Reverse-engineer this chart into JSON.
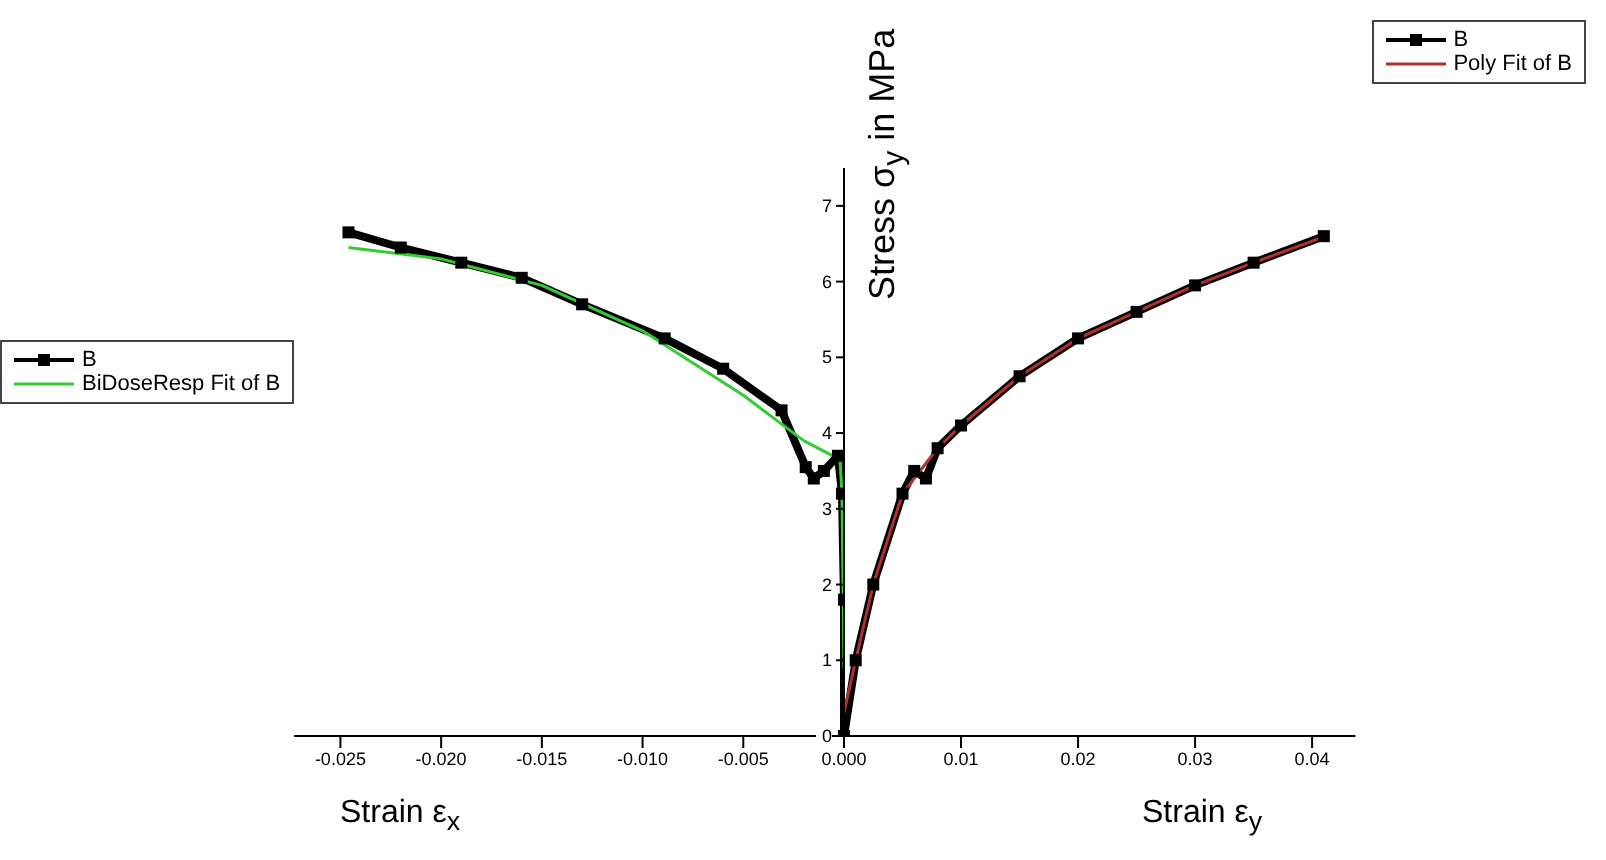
{
  "chart_data": [
    {
      "type": "line",
      "xlabel": "Strain ε$_{x}$",
      "xlim": [
        -0.0273,
        0
      ],
      "xticks": [
        {
          "value": -0.025,
          "label": "-0.025"
        },
        {
          "value": -0.02,
          "label": "-0.020"
        },
        {
          "value": -0.015,
          "label": "-0.015"
        },
        {
          "value": -0.01,
          "label": "-0.010"
        },
        {
          "value": -0.005,
          "label": "-0.005"
        },
        {
          "value": 0,
          "label": "0.000"
        }
      ],
      "ylim": [
        0,
        7.5
      ],
      "yticks": [
        0,
        1,
        2,
        3,
        4,
        5,
        6,
        7
      ],
      "legend": "left",
      "grid": false,
      "series": [
        {
          "name": "B",
          "color": "#000000",
          "marker": "square",
          "x": [
            -0.0246,
            -0.022,
            -0.019,
            -0.016,
            -0.013,
            -0.0089,
            -0.006,
            -0.0031,
            -0.0019,
            -0.0015,
            -0.001,
            -0.0003,
            -0.0001,
            0,
            0
          ],
          "values": [
            6.65,
            6.45,
            6.25,
            6.05,
            5.7,
            5.25,
            4.85,
            4.3,
            3.55,
            3.4,
            3.5,
            3.7,
            3.2,
            1.8,
            0
          ]
        },
        {
          "name": "BiDoseResp Fit of B",
          "color": "#33cc33",
          "marker": "none",
          "x": [
            -0.0246,
            -0.02,
            -0.015,
            -0.01,
            -0.005,
            -0.002,
            -0.0002,
            -0.0001,
            0
          ],
          "values": [
            6.45,
            6.3,
            5.95,
            5.35,
            4.5,
            3.9,
            3.65,
            3.2,
            0.9
          ]
        }
      ]
    },
    {
      "type": "line",
      "ylabel": "Stress σ$_{y}$ in MPa",
      "xlabel": "Strain ε$_{y}$",
      "xlim": [
        0,
        0.0437
      ],
      "xticks": [
        {
          "value": 0,
          "label": null
        },
        0.01,
        0.02,
        0.03,
        0.04
      ],
      "ylim": [
        0,
        7.5
      ],
      "tick_labels": "x",
      "legend": "top right",
      "grid": false,
      "series": [
        {
          "name": "B",
          "color": "#000000",
          "marker": "square",
          "x": [
            0,
            0.001,
            0.0025,
            0.005,
            0.006,
            0.007,
            0.008,
            0.01,
            0.015,
            0.02,
            0.025,
            0.03,
            0.035,
            0.041
          ],
          "values": [
            0,
            1,
            2,
            3.2,
            3.5,
            3.4,
            3.8,
            4.1,
            4.75,
            5.25,
            5.6,
            5.95,
            6.25,
            6.6
          ]
        },
        {
          "name": "Poly Fit of B",
          "color": "#b03030",
          "marker": "none",
          "x": [
            0,
            0.001,
            0.0025,
            0.005,
            0.008,
            0.01,
            0.015,
            0.02,
            0.025,
            0.03,
            0.035,
            0.0415
          ],
          "values": [
            0.3,
            1,
            2,
            3.2,
            3.8,
            4.1,
            4.75,
            5.25,
            5.6,
            5.95,
            6.25,
            6.62
          ]
        }
      ]
    }
  ]
}
